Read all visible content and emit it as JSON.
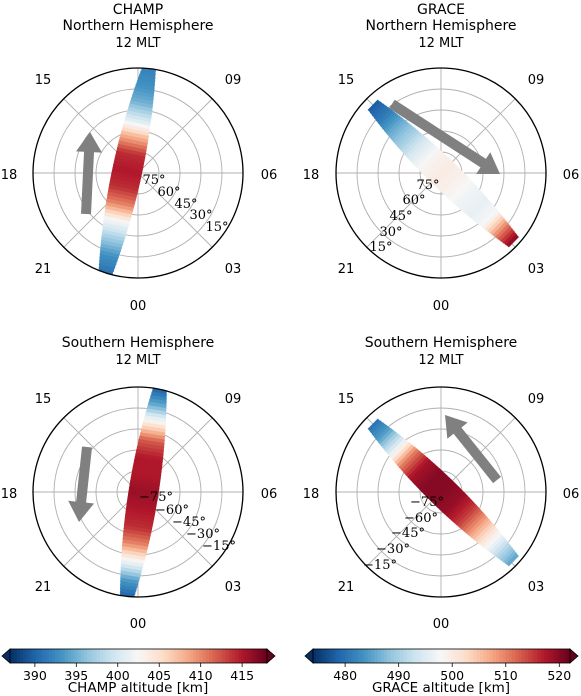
{
  "palette": {
    "colormap": [
      "#053061",
      "#2166ac",
      "#4393c3",
      "#92c5de",
      "#d1e5f0",
      "#f7f7f7",
      "#fddbc7",
      "#f4a582",
      "#d6604d",
      "#b2182b",
      "#67001f"
    ],
    "arrow": "#808080",
    "grid": "#b0b0b0"
  },
  "chart_data": [
    {
      "type": "polar-dial",
      "id": "champ-nh",
      "title_lines": [
        "CHAMP",
        "Northern Hemisphere",
        "12 MLT"
      ],
      "mlt_labels": [
        "15",
        "09",
        "18",
        "06",
        "21",
        "03",
        "00"
      ],
      "ring_labels": [
        "75°",
        "60°",
        "45°",
        "30°",
        "15°"
      ],
      "track": {
        "start_mlt": 11.6,
        "end_mlt": 22.8,
        "start_r": 1.0,
        "end_r": 1.0,
        "values": [
          392,
          393,
          395,
          400,
          408,
          414,
          415,
          414,
          410,
          402,
          397,
          393,
          391
        ]
      },
      "arrow_direction": "toward-noon",
      "colorbar": "champ"
    },
    {
      "type": "polar-dial",
      "id": "grace-nh",
      "title_lines": [
        "GRACE",
        "Northern Hemisphere",
        "12 MLT"
      ],
      "mlt_labels": [
        "15",
        "09",
        "18",
        "06",
        "21",
        "03",
        "00"
      ],
      "ring_labels": [
        "75°",
        "60°",
        "45°",
        "30°",
        "15°"
      ],
      "track": {
        "start_mlt": 15.0,
        "end_mlt": 3.1,
        "start_r": 0.92,
        "end_r": 0.95,
        "values": [
          478,
          481,
          486,
          490,
          495,
          499,
          500,
          499,
          497,
          496,
          498,
          510,
          520
        ]
      },
      "arrow_direction": "away-from-15",
      "colorbar": "grace"
    },
    {
      "type": "polar-dial",
      "id": "champ-sh",
      "title_lines": [
        "Southern Hemisphere",
        "12 MLT"
      ],
      "mlt_labels": [
        "15",
        "09",
        "18",
        "06",
        "21",
        "03",
        "00"
      ],
      "ring_labels": [
        "−75°",
        "−60°",
        "−45°",
        "−30°",
        "−15°"
      ],
      "track": {
        "start_mlt": 11.2,
        "end_mlt": 23.6,
        "start_r": 1.0,
        "end_r": 1.0,
        "values": [
          390,
          395,
          404,
          412,
          415,
          415,
          416,
          415,
          414,
          410,
          402,
          394,
          390
        ]
      },
      "arrow_direction": "toward-midnight",
      "colorbar": "champ"
    },
    {
      "type": "polar-dial",
      "id": "grace-sh",
      "title_lines": [
        "Southern Hemisphere",
        "12 MLT"
      ],
      "mlt_labels": [
        "15",
        "09",
        "18",
        "06",
        "21",
        "03",
        "00"
      ],
      "ring_labels": [
        "−75°",
        "−60°",
        "−45°",
        "−30°",
        "−15°"
      ],
      "track": {
        "start_mlt": 15.0,
        "end_mlt": 3.1,
        "start_r": 0.92,
        "end_r": 0.95,
        "values": [
          480,
          485,
          495,
          510,
          518,
          520,
          520,
          519,
          515,
          508,
          500,
          492,
          485
        ]
      },
      "arrow_direction": "toward-15",
      "colorbar": "grace"
    }
  ],
  "colorbars": {
    "champ": {
      "label": "CHAMP altitude [km]",
      "min": 387,
      "max": 418,
      "ticks": [
        390,
        395,
        400,
        405,
        410,
        415
      ]
    },
    "grace": {
      "label": "GRACE altitude [km]",
      "min": 474,
      "max": 522,
      "ticks": [
        480,
        490,
        500,
        510,
        520
      ]
    }
  }
}
